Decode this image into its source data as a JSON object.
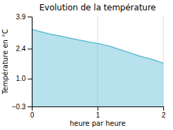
{
  "chart_data": {
    "type": "area",
    "title": "Evolution de la température",
    "xlabel": "heure par heure",
    "ylabel": "Température en °C",
    "x": [
      0,
      0.1,
      0.2,
      0.3,
      0.4,
      0.5,
      0.6,
      0.7,
      0.8,
      0.9,
      1.0,
      1.1,
      1.2,
      1.3,
      1.4,
      1.5,
      1.6,
      1.7,
      1.8,
      1.9,
      2.0
    ],
    "values": [
      3.3,
      3.22,
      3.14,
      3.07,
      3.01,
      2.95,
      2.88,
      2.82,
      2.76,
      2.7,
      2.65,
      2.58,
      2.5,
      2.4,
      2.3,
      2.2,
      2.1,
      2.0,
      1.93,
      1.83,
      1.72
    ],
    "color": "#60bcd4",
    "xlim": [
      0,
      2
    ],
    "ylim": [
      -0.3,
      3.9
    ],
    "xticks": [
      0,
      1,
      2
    ],
    "yticks": [
      {
        "value": -0.3,
        "label": "−0.3"
      },
      {
        "value": 1.0,
        "label": "1.0"
      },
      2.4,
      3.9
    ],
    "grid": "x"
  }
}
